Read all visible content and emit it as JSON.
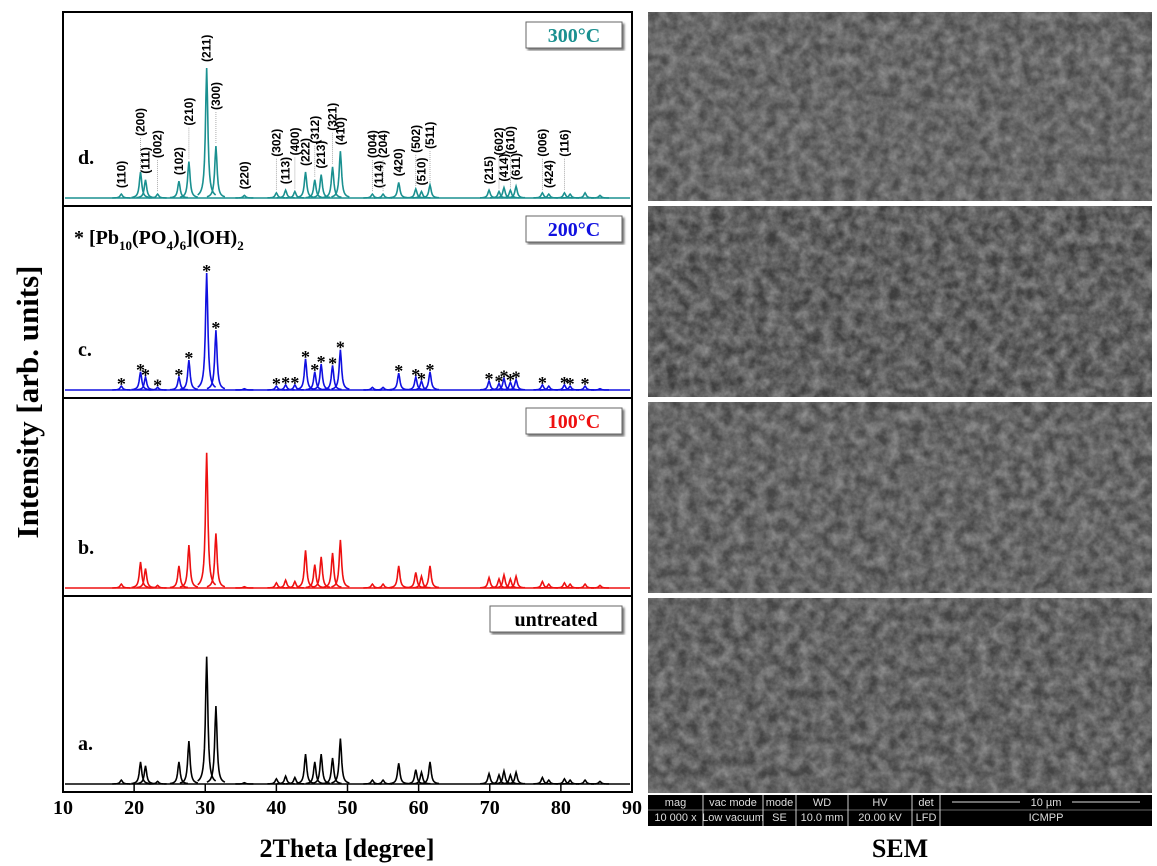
{
  "chart_data": {
    "type": "xrd-stack",
    "xlabel": "2Theta [degree]",
    "ylabel": "Intensity [arb. units]",
    "xlim": [
      10,
      90
    ],
    "xticks": [
      10,
      20,
      30,
      40,
      50,
      60,
      70,
      80,
      90
    ],
    "legend": "upper right",
    "x": [
      18.2,
      20.9,
      21.6,
      23.3,
      26.3,
      27.7,
      30.2,
      31.5,
      35.5,
      40.0,
      41.3,
      42.6,
      44.1,
      45.4,
      46.3,
      47.9,
      49.0,
      53.5,
      55.0,
      57.2,
      59.6,
      60.4,
      61.6,
      69.9,
      71.3,
      72.0,
      72.9,
      73.7,
      77.4,
      78.3,
      80.5,
      81.3,
      83.4,
      85.5
    ],
    "series": [
      {
        "name": "300°C",
        "letter": "d.",
        "color": "#1a9090",
        "values": [
          3,
          20,
          14,
          3,
          13,
          28,
          100,
          40,
          2,
          4,
          6,
          5,
          20,
          14,
          18,
          24,
          36,
          3,
          3,
          12,
          7,
          5,
          10,
          6,
          5,
          8,
          6,
          9,
          4,
          3,
          4,
          3,
          4,
          2
        ]
      },
      {
        "name": "200°C",
        "letter": "c.",
        "color": "#1010e0",
        "values": [
          3,
          14,
          10,
          2,
          10,
          23,
          90,
          46,
          1,
          3,
          4,
          4,
          24,
          14,
          20,
          19,
          31,
          2,
          2,
          13,
          10,
          7,
          14,
          7,
          5,
          9,
          6,
          8,
          4,
          3,
          4,
          3,
          3,
          1
        ]
      },
      {
        "name": "100°C",
        "letter": "b.",
        "color": "#ee1010",
        "values": [
          3,
          20,
          15,
          2,
          17,
          33,
          104,
          42,
          1,
          4,
          6,
          5,
          29,
          18,
          24,
          27,
          37,
          3,
          3,
          17,
          12,
          9,
          17,
          8,
          7,
          10,
          7,
          9,
          5,
          3,
          4,
          3,
          3,
          2
        ]
      },
      {
        "name": "untreated",
        "letter": "a.",
        "color": "#000000",
        "values": [
          3,
          17,
          14,
          2,
          17,
          33,
          98,
          60,
          1,
          4,
          6,
          5,
          23,
          17,
          23,
          20,
          35,
          3,
          3,
          16,
          11,
          9,
          17,
          8,
          7,
          10,
          7,
          9,
          5,
          3,
          4,
          3,
          3,
          2
        ]
      }
    ],
    "hkl": [
      {
        "label": "(110)",
        "x": 18.2
      },
      {
        "label": "(200)",
        "x": 20.9
      },
      {
        "label": "(111)",
        "x": 21.6
      },
      {
        "label": "(002)",
        "x": 23.3
      },
      {
        "label": "(102)",
        "x": 26.3
      },
      {
        "label": "(210)",
        "x": 27.7
      },
      {
        "label": "(211)",
        "x": 30.2
      },
      {
        "label": "(300)",
        "x": 31.5
      },
      {
        "label": "(220)",
        "x": 35.5
      },
      {
        "label": "(302)",
        "x": 40.0
      },
      {
        "label": "(113)",
        "x": 41.3
      },
      {
        "label": "(400)",
        "x": 42.6
      },
      {
        "label": "(222)",
        "x": 44.1
      },
      {
        "label": "(312)",
        "x": 45.4
      },
      {
        "label": "(213)",
        "x": 46.3
      },
      {
        "label": "(321)",
        "x": 47.9
      },
      {
        "label": "(410)",
        "x": 49.0
      },
      {
        "label": "(004)",
        "x": 53.5
      },
      {
        "label": "(114)",
        "x": 54.4
      },
      {
        "label": "(204)",
        "x": 55.0
      },
      {
        "label": "(420)",
        "x": 57.2
      },
      {
        "label": "(502)",
        "x": 59.6
      },
      {
        "label": "(510)",
        "x": 60.4
      },
      {
        "label": "(511)",
        "x": 61.6
      },
      {
        "label": "(215)",
        "x": 69.9
      },
      {
        "label": "(602)",
        "x": 71.3
      },
      {
        "label": "(414)",
        "x": 72.0
      },
      {
        "label": "(610)",
        "x": 72.9
      },
      {
        "label": "(611)",
        "x": 73.7
      },
      {
        "label": "(006)",
        "x": 77.4
      },
      {
        "label": "(424)",
        "x": 78.3
      },
      {
        "label": "(116)",
        "x": 80.5
      }
    ],
    "star_symbol": "*",
    "star_x": [
      18.2,
      20.9,
      21.6,
      23.3,
      26.3,
      27.7,
      30.2,
      31.5,
      40.0,
      41.3,
      42.6,
      44.1,
      45.4,
      46.3,
      47.9,
      49.0,
      57.2,
      59.6,
      60.4,
      61.6,
      69.9,
      71.3,
      72.0,
      72.9,
      73.7,
      77.4,
      80.5,
      81.3,
      83.4
    ],
    "annotation_parts": [
      "* [Pb",
      "10",
      "(PO",
      "4",
      ")",
      "6",
      "](OH)",
      "2"
    ]
  },
  "sem": {
    "label": "SEM",
    "info_headers": [
      "mag",
      "vac mode",
      "mode",
      "WD",
      "HV",
      "det"
    ],
    "info_values": [
      "10 000 x",
      "Low vacuum",
      "SE",
      "10.0 mm",
      "20.00 kV",
      "LFD"
    ],
    "scale_bar": "10 µm",
    "institution": "ICMPP"
  }
}
